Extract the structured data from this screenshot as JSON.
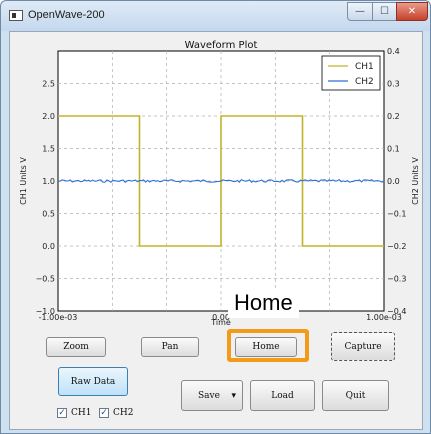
{
  "window": {
    "title": "OpenWave-200",
    "minimize_glyph": "—",
    "maximize_glyph": "☐",
    "close_glyph": "✕"
  },
  "plot": {
    "title": "Waveform Plot",
    "x_label": "Time",
    "y_left_label": "CH1 Units  V",
    "y_right_label": "CH2 Units  V",
    "x_tick_labels": [
      "-1.00e-03",
      "0.00",
      "1.00e-03"
    ]
  },
  "chart_data": {
    "type": "line",
    "title": "Waveform Plot",
    "xlabel": "Time",
    "ylabel": "CH1 Units  V",
    "y2label": "CH2 Units  V",
    "xlim": [
      -0.001,
      0.001
    ],
    "ylim": [
      -1.0,
      3.0
    ],
    "y2lim": [
      -0.4,
      0.4
    ],
    "y_ticks": [
      -1.0,
      -0.5,
      0.0,
      0.5,
      1.0,
      1.5,
      2.0,
      2.5
    ],
    "y_tick_labels": [
      "−1.0",
      "−0.5",
      "0.0",
      "0.5",
      "1.0",
      "1.5",
      "2.0",
      "2.5"
    ],
    "y2_ticks": [
      -0.4,
      -0.3,
      -0.2,
      -0.1,
      0.0,
      0.1,
      0.2,
      0.3,
      0.4
    ],
    "y2_tick_labels": [
      "−0.4",
      "−0.3",
      "−0.2",
      "−0.1",
      "0.0",
      "0.1",
      "0.2",
      "0.3",
      "0.4"
    ],
    "grid": true,
    "legend_position": "top-right",
    "series": [
      {
        "name": "CH1",
        "axis": "left",
        "color": "#c2b42a",
        "x": [
          -0.001,
          -0.0005,
          -0.0005,
          0.0,
          0.0,
          0.0005,
          0.0005,
          0.001
        ],
        "y": [
          2.0,
          2.0,
          0.0,
          0.0,
          2.0,
          2.0,
          0.0,
          0.0
        ]
      },
      {
        "name": "CH2",
        "axis": "right",
        "color": "#2f6fd6",
        "x": [
          -0.001,
          0.001
        ],
        "y": [
          0.0,
          0.0
        ]
      }
    ]
  },
  "toolbar": {
    "zoom": "Zoom",
    "pan": "Pan",
    "home": "Home",
    "capture": "Capture"
  },
  "controls": {
    "raw_data": "Raw Data",
    "save": "Save",
    "load": "Load",
    "quit": "Quit",
    "dropdown_glyph": "▾"
  },
  "channels": {
    "ch1_label": "CH1",
    "ch2_label": "CH2",
    "ch1_checked": true,
    "ch2_checked": true,
    "check_glyph": "✓"
  },
  "annotation": {
    "callout_text": "Home"
  },
  "colors": {
    "highlight": "#f49a1a",
    "ch1": "#c2b42a",
    "ch2": "#2f6fd6"
  }
}
